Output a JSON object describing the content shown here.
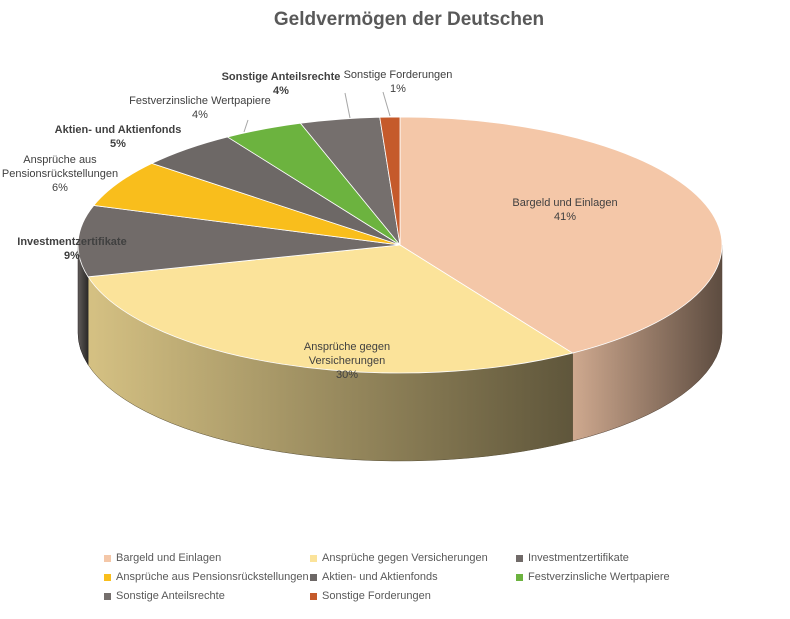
{
  "chart_data": {
    "type": "pie",
    "title": "Geldvermögen der Deutschen",
    "three_d": true,
    "slices": [
      {
        "label": "Bargeld und Einlagen",
        "percent_label": "41%",
        "value": 41,
        "color": "#F4C7A8",
        "bold": false
      },
      {
        "label": "Ansprüche gegen Versicherungen",
        "percent_label": "30%",
        "value": 30,
        "color": "#FBE39A",
        "bold": false
      },
      {
        "label": "Investmentzertifikate",
        "percent_label": "9%",
        "value": 9,
        "color": "#716B69",
        "bold": true
      },
      {
        "label": "Ansprüche aus Pensionsrückstellungen",
        "percent_label": "6%",
        "value": 6,
        "color": "#F9BE1C",
        "bold": false
      },
      {
        "label": "Aktien- und Aktienfonds",
        "percent_label": "5%",
        "value": 5,
        "color": "#6D6866",
        "bold": true
      },
      {
        "label": "Festverzinsliche Wertpapiere",
        "percent_label": "4%",
        "value": 4,
        "color": "#6CB33F",
        "bold": false
      },
      {
        "label": "Sonstige Anteilsrechte",
        "percent_label": "4%",
        "value": 4,
        "color": "#756F6D",
        "bold": true
      },
      {
        "label": "Sonstige Forderungen",
        "percent_label": "1%",
        "value": 1,
        "color": "#C55A2B",
        "bold": false
      }
    ],
    "legend_position": "bottom"
  }
}
